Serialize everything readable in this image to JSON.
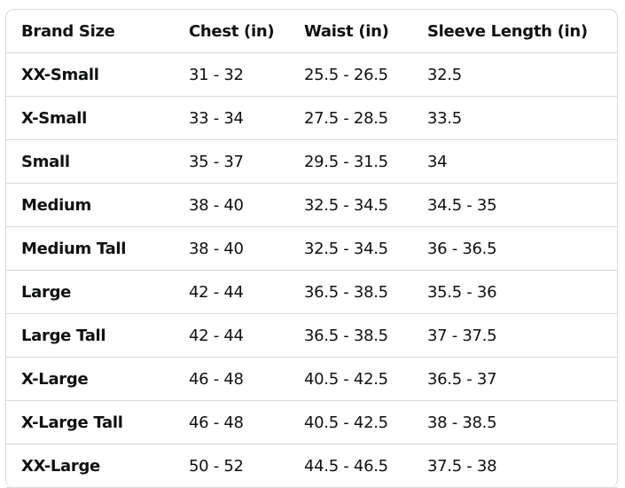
{
  "table": {
    "headers": [
      "Brand Size",
      "Chest (in)",
      "Waist (in)",
      "Sleeve Length (in)"
    ],
    "rows": [
      [
        "XX-Small",
        "31 - 32",
        "25.5 - 26.5",
        "32.5"
      ],
      [
        "X-Small",
        "33 - 34",
        "27.5 - 28.5",
        "33.5"
      ],
      [
        "Small",
        "35 - 37",
        "29.5 - 31.5",
        "34"
      ],
      [
        "Medium",
        "38 - 40",
        "32.5 - 34.5",
        "34.5 - 35"
      ],
      [
        "Medium Tall",
        "38 - 40",
        "32.5 - 34.5",
        "36 - 36.5"
      ],
      [
        "Large",
        "42 - 44",
        "36.5 - 38.5",
        "35.5 - 36"
      ],
      [
        "Large Tall",
        "42 - 44",
        "36.5 - 38.5",
        "37 - 37.5"
      ],
      [
        "X-Large",
        "46 - 48",
        "40.5 - 42.5",
        "36.5 - 37"
      ],
      [
        "X-Large Tall",
        "46 - 48",
        "40.5 - 42.5",
        "38 - 38.5"
      ],
      [
        "XX-Large",
        "50 - 52",
        "44.5 - 46.5",
        "37.5 - 38"
      ]
    ]
  }
}
